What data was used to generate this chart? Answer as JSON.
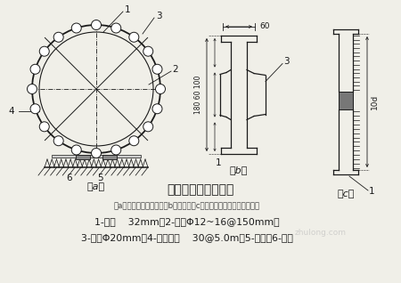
{
  "bg_color": "#f0efe8",
  "title": "钢筋笼的成型与加固",
  "subtitle": "（a）钢筋笼加固成型；（b）耳环；（c）上下段钢筋笼主筋对焊连接",
  "line1": "1-主筋    32mm；2-箍筋Φ12~16@150mm；",
  "line2": "3-耳环Φ20mm；4-加劲支撑    30@5.0m；5-轻轨；6-枕木",
  "label_a": "（a）",
  "label_b": "（b）",
  "label_c": "（c）",
  "watermark": "zhulong.com",
  "lc": "#1a1a1a",
  "dim60": "60",
  "dim180_60_100": "180 60 100",
  "dim10d": "10d"
}
